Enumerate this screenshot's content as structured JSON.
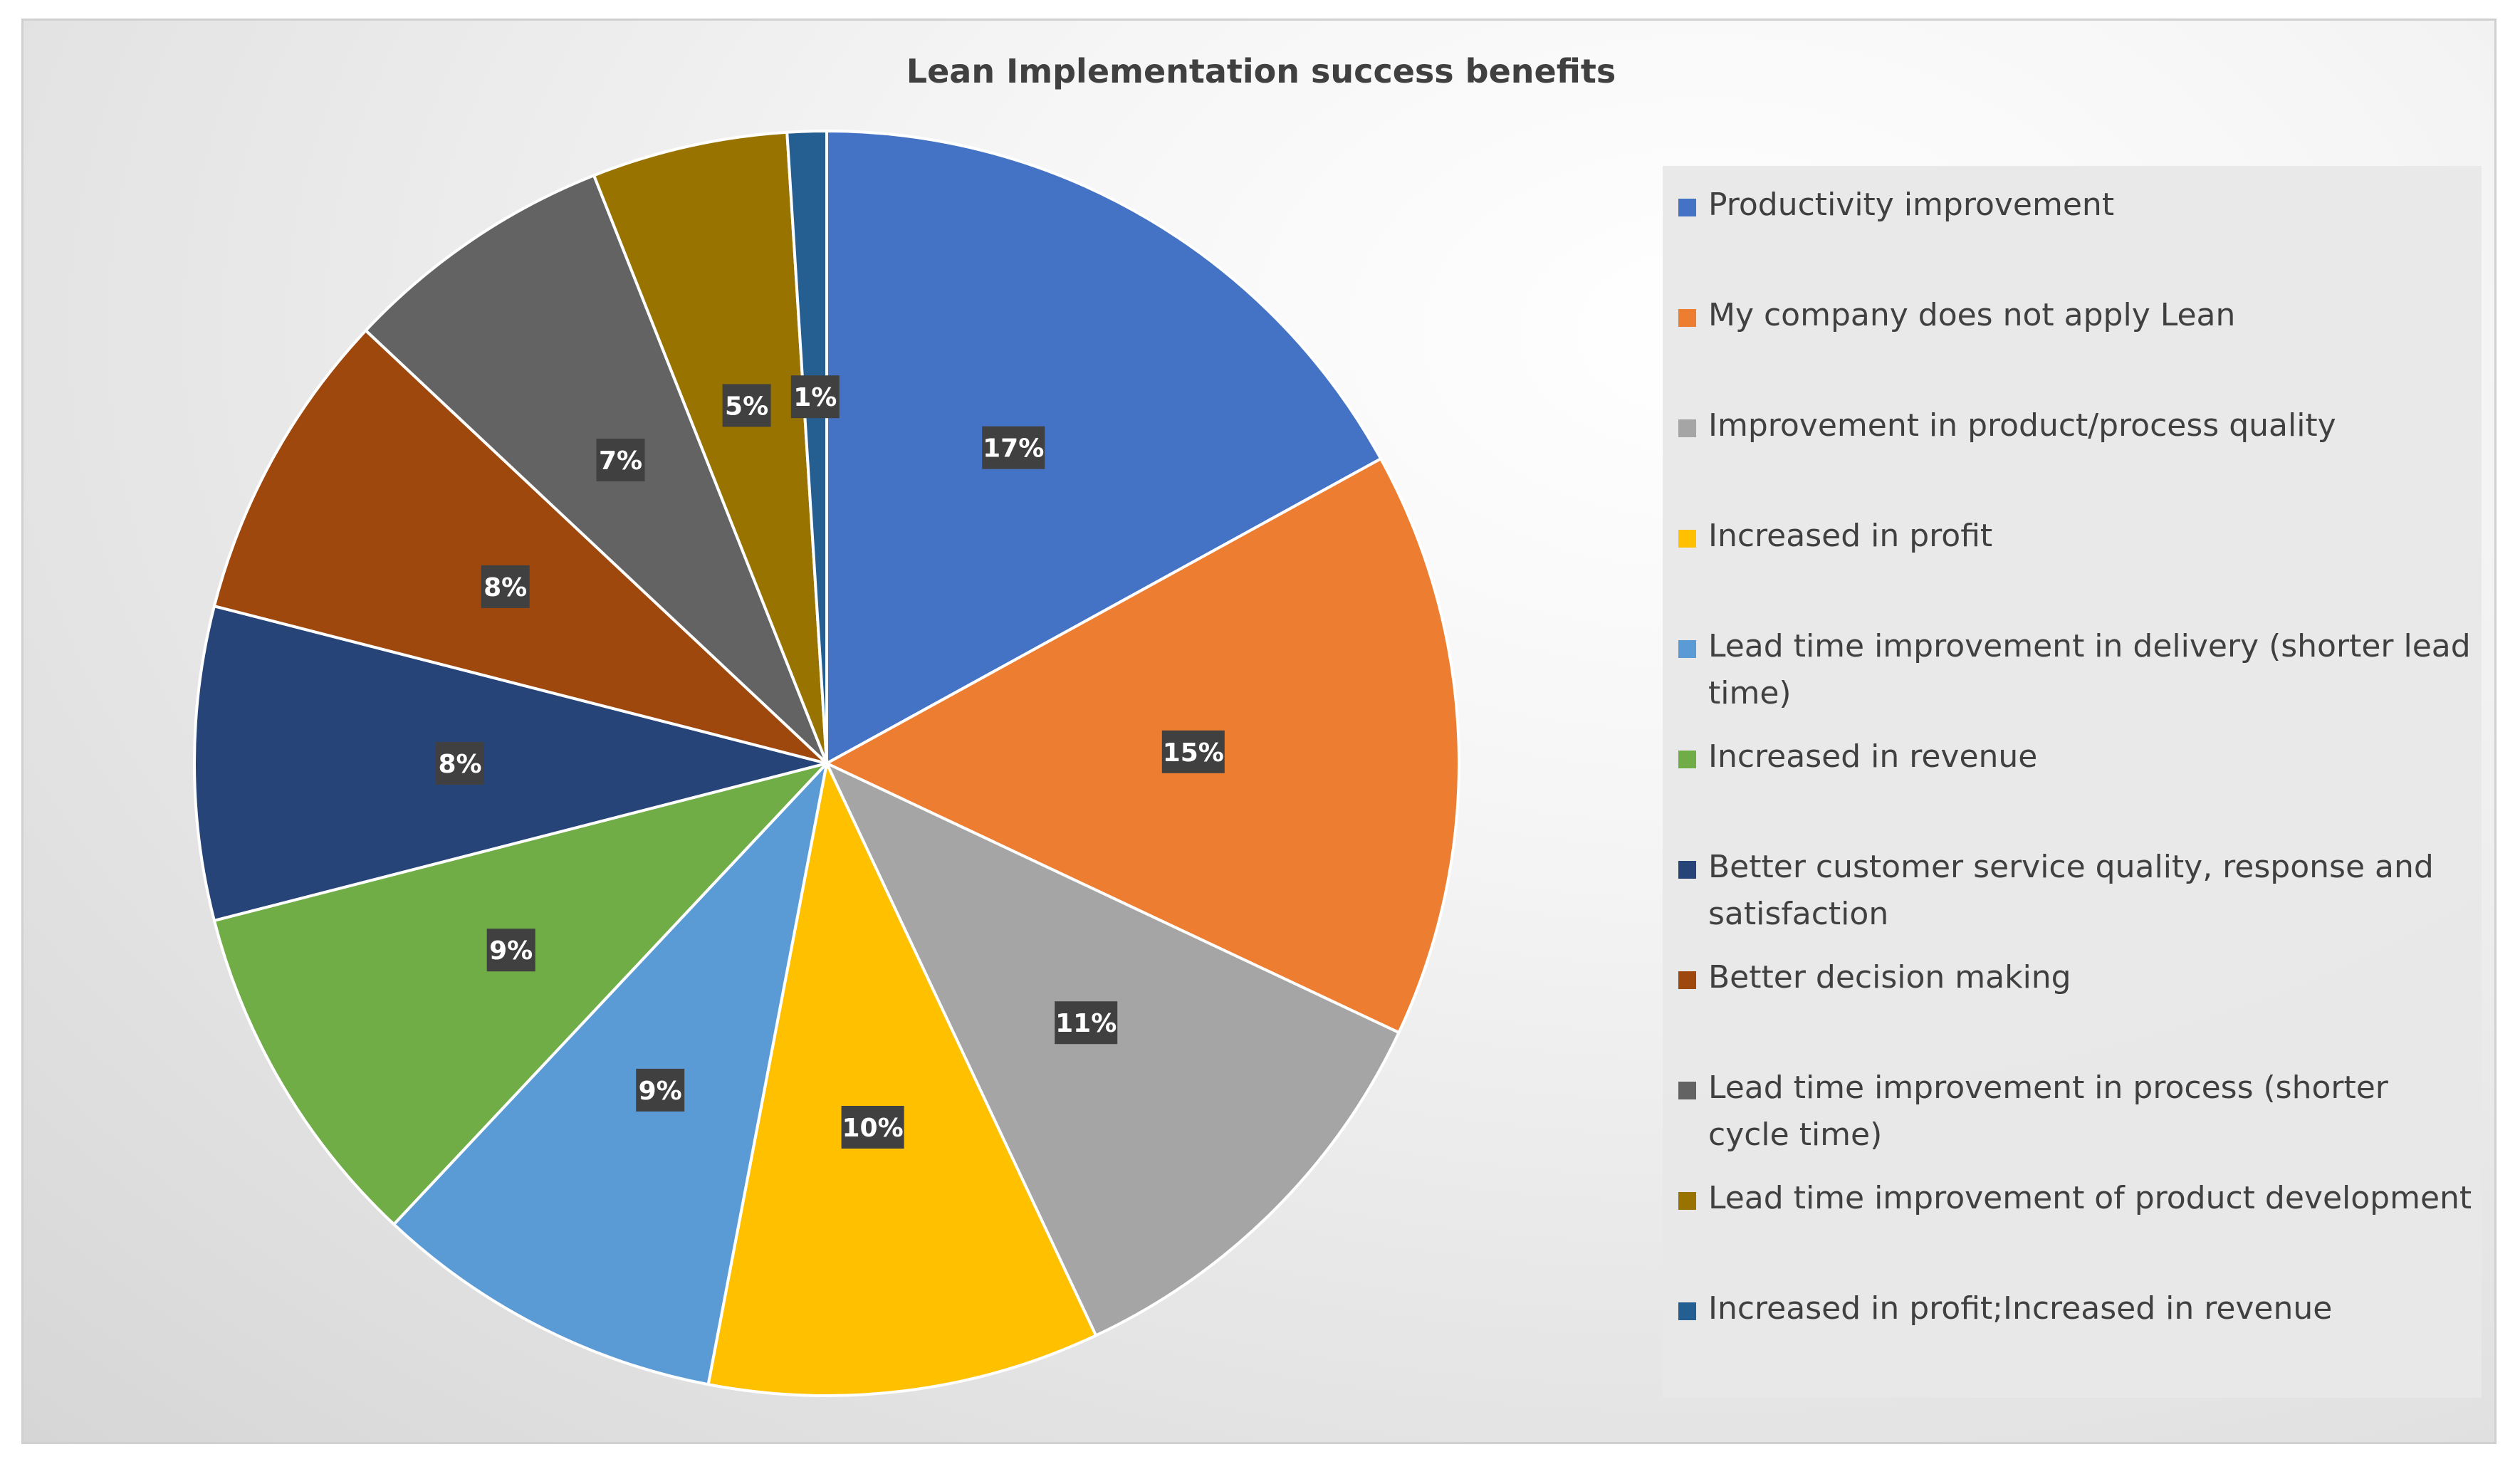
{
  "chart_data": {
    "type": "pie",
    "title": "Lean Implementation success benefits",
    "legend_position": "right",
    "slices": [
      {
        "label": "Productivity improvement",
        "value": 17,
        "value_label": "17%",
        "color": "#4472C4"
      },
      {
        "label": "My company does not apply Lean",
        "value": 15,
        "value_label": "15%",
        "color": "#ED7D31"
      },
      {
        "label": "Improvement in product/process quality",
        "value": 11,
        "value_label": "11%",
        "color": "#A5A5A5"
      },
      {
        "label": "Increased in profit",
        "value": 10,
        "value_label": "10%",
        "color": "#FFC000"
      },
      {
        "label": "Lead time improvement in delivery (shorter lead time)",
        "value": 9,
        "value_label": "9%",
        "color": "#5B9BD5"
      },
      {
        "label": "Increased in revenue",
        "value": 9,
        "value_label": "9%",
        "color": "#70AD47"
      },
      {
        "label": "Better customer service quality, response and satisfaction",
        "value": 8,
        "value_label": "8%",
        "color": "#264478"
      },
      {
        "label": "Better decision making",
        "value": 8,
        "value_label": "8%",
        "color": "#9E480E"
      },
      {
        "label": "Lead time improvement in process (shorter cycle time)",
        "value": 7,
        "value_label": "7%",
        "color": "#636363"
      },
      {
        "label": "Lead time improvement of product development",
        "value": 5,
        "value_label": "5%",
        "color": "#997300"
      },
      {
        "label": "Increased in profit;Increased in revenue",
        "value": 1,
        "value_label": "1%",
        "color": "#255E91"
      }
    ]
  }
}
